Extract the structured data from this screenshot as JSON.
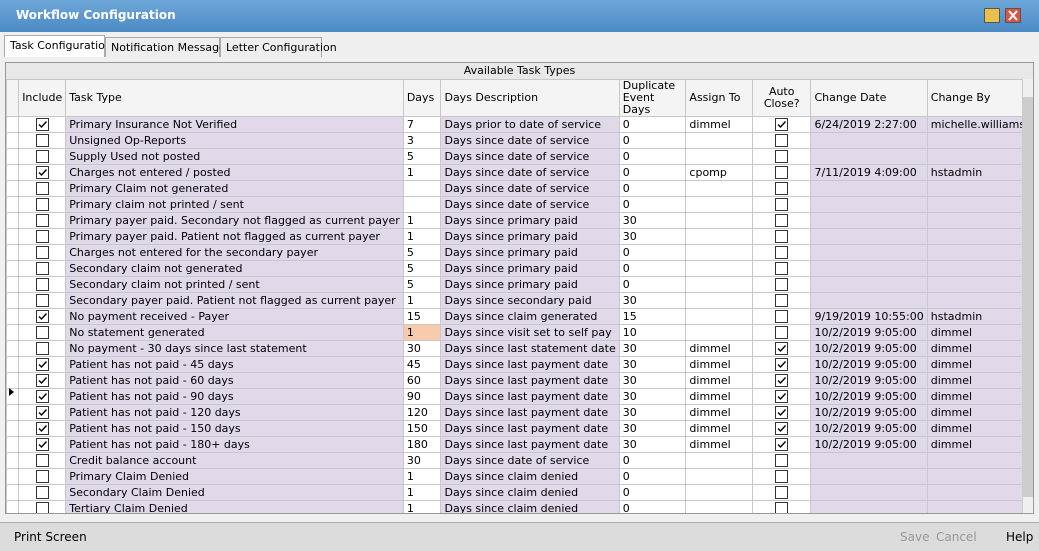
{
  "window": {
    "title": "Workflow Configuration"
  },
  "tabs": [
    "Task Configuration",
    "Notification Messages",
    "Letter Configuration"
  ],
  "table": {
    "caption": "Available Task Types",
    "headers": [
      "Include",
      "Task Type",
      "Days",
      "Days Description",
      "Duplicate Event Days",
      "Assign To",
      "Auto Close?",
      "Change Date",
      "Change By"
    ],
    "rows": [
      [
        true,
        "Primary Insurance Not Verified",
        7,
        "Days prior to date of service",
        0,
        "dimmel",
        true,
        "6/24/2019 2:27:00",
        "michelle.williams"
      ],
      [
        false,
        "Unsigned Op-Reports",
        3,
        "Days since date of service",
        0,
        null,
        false,
        null,
        null
      ],
      [
        false,
        "Supply Used not posted",
        5,
        "Days since date of service",
        0,
        null,
        false,
        null,
        null
      ],
      [
        true,
        "Charges not entered / posted",
        1,
        "Days since date of service",
        0,
        "cpomp",
        false,
        "7/11/2019 4:09:00",
        "hstadmin"
      ],
      [
        false,
        "Primary Claim not generated",
        null,
        "Days since date of service",
        0,
        null,
        false,
        null,
        null
      ],
      [
        false,
        "Primary claim not printed / sent",
        null,
        "Days since date of service",
        0,
        null,
        false,
        null,
        null
      ],
      [
        false,
        "Primary payer paid. Secondary not flagged as current payer",
        1,
        "Days since primary paid",
        30,
        null,
        false,
        null,
        null
      ],
      [
        false,
        "Primary payer paid. Patient not flagged as current payer",
        1,
        "Days since primary paid",
        30,
        null,
        false,
        null,
        null
      ],
      [
        false,
        "Charges not entered for the secondary payer",
        5,
        "Days since primary paid",
        0,
        null,
        false,
        null,
        null
      ],
      [
        false,
        "Secondary claim not generated",
        5,
        "Days since primary paid",
        0,
        null,
        false,
        null,
        null
      ],
      [
        false,
        "Secondary claim not printed / sent",
        5,
        "Days since primary paid",
        0,
        null,
        false,
        null,
        null
      ],
      [
        false,
        "Secondary payer paid. Patient not flagged as current payer",
        1,
        "Days since secondary paid",
        30,
        null,
        false,
        null,
        null
      ],
      [
        true,
        "No payment received - Payer",
        15,
        "Days since claim generated",
        15,
        null,
        false,
        "9/19/2019 10:55:00",
        "hstadmin"
      ],
      [
        false,
        "No statement generated",
        1,
        "Days since visit set to self pay",
        10,
        null,
        false,
        "10/2/2019 9:05:00",
        "dimmel"
      ],
      [
        false,
        "No payment - 30 days since last statement",
        30,
        "Days since last statement date",
        30,
        "dimmel",
        true,
        "10/2/2019 9:05:00",
        "dimmel"
      ],
      [
        true,
        "Patient has not paid - 45 days",
        45,
        "Days since last payment date",
        30,
        "dimmel",
        true,
        "10/2/2019 9:05:00",
        "dimmel"
      ],
      [
        true,
        "Patient has not paid - 60 days",
        60,
        "Days since last payment date",
        30,
        "dimmel",
        true,
        "10/2/2019 9:05:00",
        "dimmel"
      ],
      [
        true,
        "Patient has not paid - 90 days",
        90,
        "Days since last payment date",
        30,
        "dimmel",
        true,
        "10/2/2019 9:05:00",
        "dimmel"
      ],
      [
        true,
        "Patient has not paid - 120 days",
        120,
        "Days since last payment date",
        30,
        "dimmel",
        true,
        "10/2/2019 9:05:00",
        "dimmel"
      ],
      [
        true,
        "Patient has not paid - 150 days",
        150,
        "Days since last payment date",
        30,
        "dimmel",
        true,
        "10/2/2019 9:05:00",
        "dimmel"
      ],
      [
        true,
        "Patient has not paid - 180+ days",
        180,
        "Days since last payment date",
        30,
        "dimmel",
        true,
        "10/2/2019 9:05:00",
        "dimmel"
      ],
      [
        false,
        "Credit balance account",
        30,
        "Days since date of service",
        0,
        null,
        false,
        null,
        null
      ],
      [
        false,
        "Primary Claim Denied",
        1,
        "Days since claim denied",
        0,
        null,
        false,
        null,
        null
      ],
      [
        false,
        "Secondary Claim Denied",
        1,
        "Days since claim denied",
        0,
        null,
        false,
        null,
        null
      ],
      [
        false,
        "Tertiary Claim Denied",
        1,
        "Days since claim denied",
        0,
        null,
        false,
        null,
        null
      ]
    ]
  },
  "footer": {
    "print": "Print Screen",
    "save": "Save",
    "cancel": "Cancel",
    "help": "Help"
  }
}
